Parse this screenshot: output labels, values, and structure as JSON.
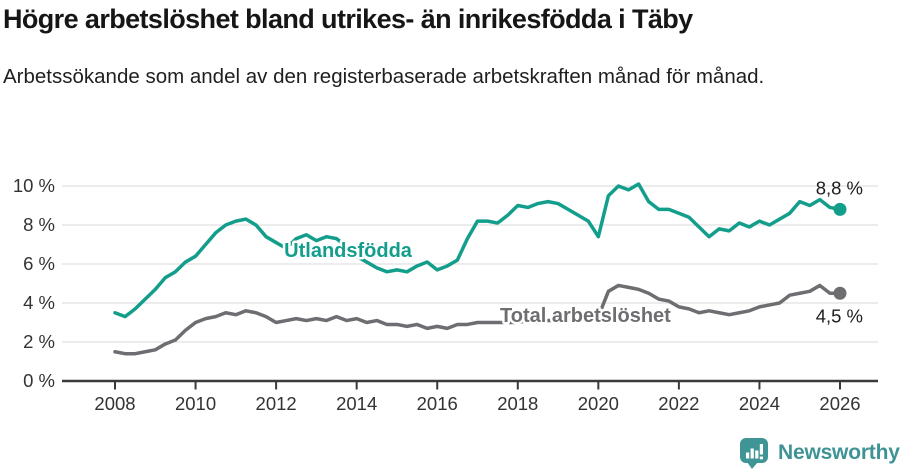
{
  "chart_data": {
    "type": "line",
    "title": "Högre arbetslöshet bland utrikes- än inrikesfödda i Täby",
    "subtitle": "Arbetssökande som andel av den registerbaserade arbetskraften månad för månad.",
    "x": {
      "unit": "year",
      "start": 2008,
      "step": 0.25,
      "count": 73,
      "end": 2026
    },
    "ylim": [
      0,
      10.5
    ],
    "grid": "horizontal-light",
    "grid_color": "#d9d9d9",
    "axis_color": "#3a3a3a",
    "tick_label_color": "#333333",
    "legend": "inline-labels",
    "yticks": [
      {
        "v": 0,
        "label": "0 %"
      },
      {
        "v": 2,
        "label": "2 %"
      },
      {
        "v": 4,
        "label": "4 %"
      },
      {
        "v": 6,
        "label": "6 %"
      },
      {
        "v": 8,
        "label": "8 %"
      },
      {
        "v": 10,
        "label": "10 %"
      }
    ],
    "xticks": [
      {
        "v": 2008,
        "label": "2008"
      },
      {
        "v": 2010,
        "label": "2010"
      },
      {
        "v": 2012,
        "label": "2012"
      },
      {
        "v": 2014,
        "label": "2014"
      },
      {
        "v": 2016,
        "label": "2016"
      },
      {
        "v": 2018,
        "label": "2018"
      },
      {
        "v": 2020,
        "label": "2020"
      },
      {
        "v": 2022,
        "label": "2022"
      },
      {
        "v": 2024,
        "label": "2024"
      },
      {
        "v": 2026,
        "label": "2026"
      }
    ],
    "series": [
      {
        "name": "Utlandsfödda",
        "color": "#139e8c",
        "label_x": 2012.2,
        "label_y": 6.35,
        "end_value_label": "8,8 %",
        "end_label_side": "above",
        "values": [
          3.5,
          3.3,
          3.7,
          4.2,
          4.7,
          5.3,
          5.6,
          6.1,
          6.4,
          7.0,
          7.6,
          8.0,
          8.2,
          8.3,
          8.0,
          7.4,
          7.1,
          6.8,
          7.3,
          7.5,
          7.2,
          7.4,
          7.3,
          6.9,
          6.4,
          6.1,
          5.8,
          5.6,
          5.7,
          5.6,
          5.9,
          6.1,
          5.7,
          5.9,
          6.2,
          7.3,
          8.2,
          8.2,
          8.1,
          8.5,
          9.0,
          8.9,
          9.1,
          9.2,
          9.1,
          8.8,
          8.5,
          8.2,
          7.4,
          9.5,
          10.0,
          9.8,
          10.1,
          9.2,
          8.8,
          8.8,
          8.6,
          8.4,
          7.9,
          7.4,
          7.8,
          7.7,
          8.1,
          7.9,
          8.2,
          8.0,
          8.3,
          8.6,
          9.2,
          9.0,
          9.3,
          8.9,
          8.8
        ]
      },
      {
        "name": "Total arbetslöshet",
        "color": "#6e6e72",
        "label_x": 2017.56,
        "label_y": 3.03,
        "end_value_label": "4,5 %",
        "end_label_side": "below",
        "values": [
          1.5,
          1.4,
          1.4,
          1.5,
          1.6,
          1.9,
          2.1,
          2.6,
          3.0,
          3.2,
          3.3,
          3.5,
          3.4,
          3.6,
          3.5,
          3.3,
          3.0,
          3.1,
          3.2,
          3.1,
          3.2,
          3.1,
          3.3,
          3.1,
          3.2,
          3.0,
          3.1,
          2.9,
          2.9,
          2.8,
          2.9,
          2.7,
          2.8,
          2.7,
          2.9,
          2.9,
          3.0,
          3.0,
          3.0,
          3.0,
          3.0,
          3.1,
          3.0,
          3.1,
          3.1,
          3.1,
          3.2,
          3.2,
          3.3,
          4.6,
          4.9,
          4.8,
          4.7,
          4.5,
          4.2,
          4.1,
          3.8,
          3.7,
          3.5,
          3.6,
          3.5,
          3.4,
          3.5,
          3.6,
          3.8,
          3.9,
          4.0,
          4.4,
          4.5,
          4.6,
          4.9,
          4.5,
          4.5
        ]
      }
    ]
  },
  "footer": {
    "brand": "Newsworthy",
    "brand_color": "#3f9394",
    "logo_color": "#3f9596",
    "icon": "newsworthy-chart-bubble-icon"
  }
}
